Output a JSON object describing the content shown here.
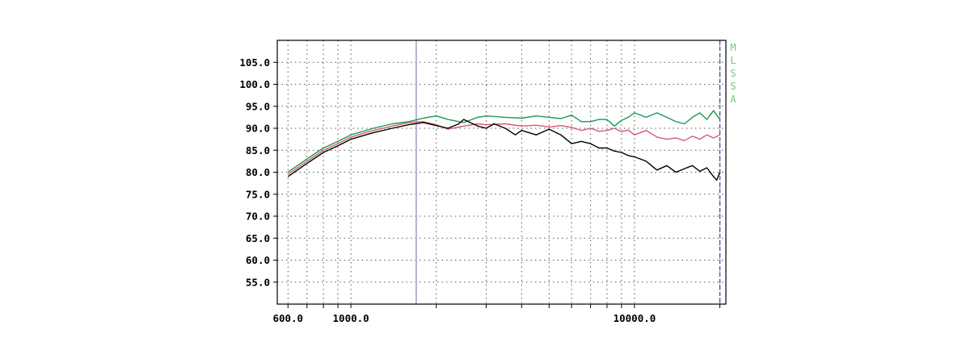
{
  "brand": {
    "text": "MLSSA",
    "color": "#7cc47c"
  },
  "chart_data": {
    "type": "line",
    "title": "",
    "xlabel": "",
    "ylabel": "",
    "x_scale": "log",
    "xlim": [
      550,
      21000
    ],
    "ylim": [
      50,
      110
    ],
    "grid": true,
    "x_tick_labels": [
      {
        "value": 600,
        "label": "600.0"
      },
      {
        "value": 1000,
        "label": "1000.0"
      },
      {
        "value": 10000,
        "label": "10000.0"
      }
    ],
    "x_gridlines": [
      600,
      700,
      800,
      900,
      1000,
      2000,
      3000,
      4000,
      5000,
      6000,
      7000,
      8000,
      9000,
      10000,
      20000
    ],
    "y_ticks": [
      {
        "value": 55,
        "label": "55.0"
      },
      {
        "value": 60,
        "label": "60.0"
      },
      {
        "value": 65,
        "label": "65.0"
      },
      {
        "value": 70,
        "label": "70.0"
      },
      {
        "value": 75,
        "label": "75.0"
      },
      {
        "value": 80,
        "label": "80.0"
      },
      {
        "value": 85,
        "label": "85.0"
      },
      {
        "value": 90,
        "label": "90.0"
      },
      {
        "value": 95,
        "label": "95.0"
      },
      {
        "value": 100,
        "label": "100.0"
      },
      {
        "value": 105,
        "label": "105.0"
      }
    ],
    "markers": [
      {
        "x": 1700,
        "color": "#8e99be",
        "style": "solid"
      },
      {
        "x": 20000,
        "color": "#4b5794",
        "style": "dashed"
      }
    ],
    "series": [
      {
        "color": "#1a9a52",
        "x": [
          600,
          700,
          800,
          900,
          1000,
          1200,
          1400,
          1600,
          1800,
          2000,
          2200,
          2500,
          2800,
          3000,
          3500,
          4000,
          4500,
          5000,
          5500,
          6000,
          6500,
          7000,
          7500,
          8000,
          8500,
          9000,
          9500,
          10000,
          11000,
          12000,
          13000,
          14000,
          15000,
          16000,
          17000,
          18000,
          19000,
          20000
        ],
        "y": [
          80,
          83,
          85.5,
          87,
          88.5,
          90,
          91,
          91.5,
          92.3,
          92.8,
          92,
          91.3,
          92.5,
          92.8,
          92.5,
          92.3,
          92.8,
          92.5,
          92.2,
          93,
          91.5,
          91.5,
          92,
          92,
          90.5,
          91.8,
          92.5,
          93.5,
          92.5,
          93.5,
          92.5,
          91.5,
          91,
          92.5,
          93.5,
          92,
          94,
          92
        ]
      },
      {
        "color": "#d85a6e",
        "x": [
          600,
          700,
          800,
          900,
          1000,
          1200,
          1400,
          1600,
          1800,
          2000,
          2200,
          2500,
          2800,
          3000,
          3500,
          4000,
          4500,
          5000,
          5500,
          6000,
          6500,
          7000,
          7500,
          8000,
          8500,
          9000,
          9500,
          10000,
          11000,
          12000,
          13000,
          14000,
          15000,
          16000,
          17000,
          18000,
          19000,
          20000
        ],
        "y": [
          79.5,
          82.5,
          85,
          86.5,
          88,
          89.5,
          90.5,
          91.3,
          91.5,
          90.8,
          89.8,
          90.5,
          91,
          90.8,
          91,
          90.5,
          90.7,
          90.3,
          90.6,
          90.2,
          89.5,
          90,
          89.3,
          89.5,
          90,
          89.2,
          89.6,
          88.5,
          89.5,
          88,
          87.5,
          87.8,
          87.2,
          88.2,
          87.5,
          88.5,
          87.8,
          88.5
        ]
      },
      {
        "color": "#000000",
        "x": [
          600,
          700,
          800,
          900,
          1000,
          1200,
          1400,
          1600,
          1800,
          2000,
          2200,
          2400,
          2500,
          2800,
          3000,
          3200,
          3500,
          3800,
          4000,
          4500,
          5000,
          5500,
          6000,
          6500,
          7000,
          7500,
          8000,
          8500,
          9000,
          9500,
          10000,
          11000,
          12000,
          13000,
          14000,
          15000,
          16000,
          17000,
          18000,
          19000,
          19500,
          20000
        ],
        "y": [
          79,
          82,
          84.5,
          86,
          87.5,
          89,
          90,
          90.8,
          91.3,
          90.6,
          90,
          91,
          92,
          90.5,
          90,
          91,
          90,
          88.5,
          89.5,
          88.5,
          89.8,
          88.5,
          86.5,
          87,
          86.5,
          85.5,
          85.5,
          84.8,
          84.5,
          83.8,
          83.5,
          82.5,
          80.5,
          81.5,
          80,
          80.8,
          81.5,
          80.2,
          81,
          79,
          78.2,
          80
        ]
      }
    ]
  }
}
